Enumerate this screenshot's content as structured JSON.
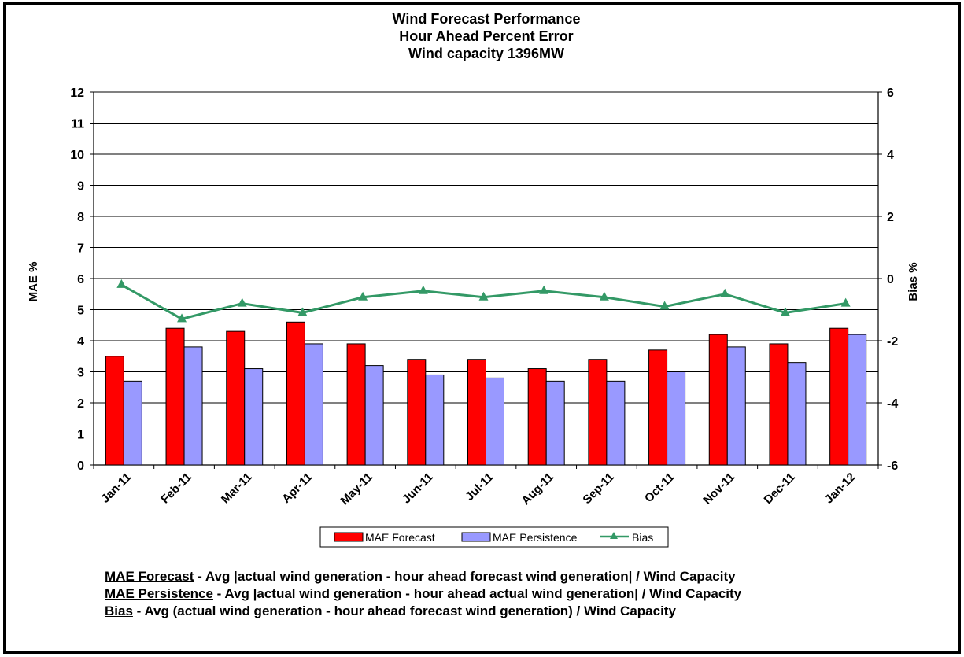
{
  "chart_data": {
    "type": "bar",
    "title": [
      "Wind Forecast Performance",
      "Hour Ahead Percent Error",
      "Wind capacity 1396MW"
    ],
    "ylabel": "MAE %",
    "y2label": "Bias %",
    "xlabel": "",
    "ylim": [
      0,
      12
    ],
    "y_ticks": [
      "0",
      "1",
      "2",
      "3",
      "4",
      "5",
      "6",
      "7",
      "8",
      "9",
      "10",
      "11",
      "12"
    ],
    "y2lim": [
      -6,
      6
    ],
    "y2_ticks": [
      "-6",
      "-4",
      "-2",
      "0",
      "2",
      "4",
      "6"
    ],
    "grid": true,
    "legend_position": "bottom",
    "categories": [
      "Jan-11",
      "Feb-11",
      "Mar-11",
      "Apr-11",
      "May-11",
      "Jun-11",
      "Jul-11",
      "Aug-11",
      "Sep-11",
      "Oct-11",
      "Nov-11",
      "Dec-11",
      "Jan-12"
    ],
    "series": [
      {
        "name": "MAE Forecast",
        "kind": "bar",
        "axis": "left",
        "color": "#ff0000",
        "values": [
          3.5,
          4.4,
          4.3,
          4.6,
          3.9,
          3.4,
          3.4,
          3.1,
          3.4,
          3.7,
          4.2,
          3.9,
          4.4
        ]
      },
      {
        "name": "MAE Persistence",
        "kind": "bar",
        "axis": "left",
        "color": "#9999ff",
        "values": [
          2.7,
          3.8,
          3.1,
          3.9,
          3.2,
          2.9,
          2.8,
          2.7,
          2.7,
          3.0,
          3.8,
          3.3,
          4.2
        ]
      },
      {
        "name": "Bias",
        "kind": "line",
        "axis": "right",
        "color": "#339966",
        "values": [
          -0.2,
          -1.3,
          -0.8,
          -1.1,
          -0.6,
          -0.4,
          -0.6,
          -0.4,
          -0.6,
          -0.9,
          -0.5,
          -1.1,
          -0.8
        ]
      }
    ]
  },
  "notes": [
    {
      "term": "MAE Forecast",
      "text": " - Avg |actual wind generation - hour ahead forecast wind generation| / Wind Capacity"
    },
    {
      "term": "MAE Persistence",
      "text": " - Avg |actual wind generation - hour ahead actual wind generation| / Wind Capacity"
    },
    {
      "term": "Bias",
      "text": " - Avg (actual wind generation - hour ahead forecast wind generation) / Wind Capacity"
    }
  ]
}
